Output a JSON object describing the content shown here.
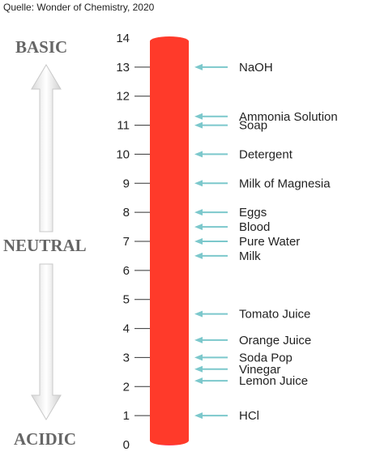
{
  "source_caption": "Quelle: Wonder of Chemistry, 2020",
  "side_labels": {
    "basic": "BASIC",
    "neutral": "NEUTRAL",
    "acidic": "ACIDIC"
  },
  "scale": {
    "min": 0,
    "max": 14,
    "ticks": [
      "0",
      "1",
      "2",
      "3",
      "4",
      "5",
      "6",
      "7",
      "8",
      "9",
      "10",
      "11",
      "12",
      "13",
      "14"
    ]
  },
  "substances": [
    {
      "label": "NaOH",
      "ph": 13
    },
    {
      "label": "Ammonia Solution",
      "ph": 11.3
    },
    {
      "label": "Soap",
      "ph": 11
    },
    {
      "label": "Detergent",
      "ph": 10
    },
    {
      "label": "Milk of Magnesia",
      "ph": 9
    },
    {
      "label": "Eggs",
      "ph": 8
    },
    {
      "label": "Blood",
      "ph": 7.5
    },
    {
      "label": "Pure Water",
      "ph": 7
    },
    {
      "label": "Milk",
      "ph": 6.5
    },
    {
      "label": "Tomato Juice",
      "ph": 4.5
    },
    {
      "label": "Orange Juice",
      "ph": 3.6
    },
    {
      "label": "Soda Pop",
      "ph": 3
    },
    {
      "label": "Vinegar",
      "ph": 2.6
    },
    {
      "label": "Lemon Juice",
      "ph": 2.2
    },
    {
      "label": "HCl",
      "ph": 1
    }
  ],
  "colors": {
    "arrow_fill": "#eeeeee",
    "arrow_stroke": "#c8c8c8",
    "pointer_arrow": "#7cc8cc",
    "tick_line": "#333333",
    "bar_stops": [
      {
        "ph": 0,
        "color": "#ff3a2a"
      },
      {
        "ph": 1,
        "color": "#ff5a2c"
      },
      {
        "ph": 2,
        "color": "#f89a2a"
      },
      {
        "ph": 2.6,
        "color": "#c7c23a"
      },
      {
        "ph": 4.5,
        "color": "#a8b83a"
      },
      {
        "ph": 5.5,
        "color": "#5cae3a"
      },
      {
        "ph": 6.3,
        "color": "#138c2e"
      },
      {
        "ph": 6.9,
        "color": "#23a8cc"
      },
      {
        "ph": 7.5,
        "color": "#27b2f2"
      },
      {
        "ph": 8.3,
        "color": "#4a6ee8"
      },
      {
        "ph": 9.3,
        "color": "#9a45e6"
      },
      {
        "ph": 10.3,
        "color": "#ee3ecc"
      },
      {
        "ph": 11.3,
        "color": "#ff3868"
      },
      {
        "ph": 13,
        "color": "#ff5a96"
      },
      {
        "ph": 14,
        "color": "#ff3a58"
      }
    ]
  }
}
